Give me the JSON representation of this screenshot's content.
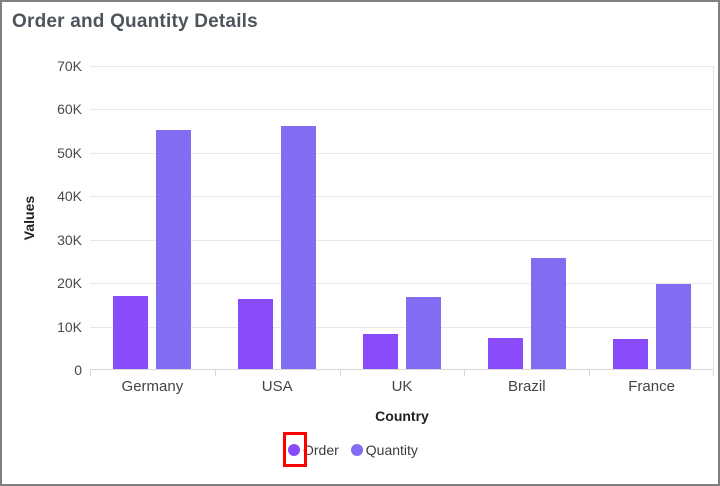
{
  "window": {
    "background": "#ffffff",
    "border_color": "#7f7f7f"
  },
  "chart_data": {
    "type": "bar",
    "title": "Order and Quantity Details",
    "xlabel": "Country",
    "ylabel": "Values",
    "categories": [
      "Germany",
      "USA",
      "UK",
      "Brazil",
      "France"
    ],
    "series": [
      {
        "name": "Order",
        "color": "#8a4bfb",
        "values": [
          16800,
          16200,
          8000,
          7200,
          6800
        ]
      },
      {
        "name": "Quantity",
        "color": "#806df2",
        "values": [
          55000,
          56000,
          16500,
          25500,
          19500
        ]
      }
    ],
    "ylim": [
      0,
      70000
    ],
    "ytick_step": 10000,
    "ytick_labels": [
      "0",
      "10K",
      "20K",
      "30K",
      "40K",
      "50K",
      "60K",
      "70K"
    ],
    "grid": "horizontal",
    "legend_position": "bottom-center"
  },
  "annotation": {
    "shape": "rectangle",
    "color": "#fe0000",
    "highlights": "order-legend-marker"
  }
}
